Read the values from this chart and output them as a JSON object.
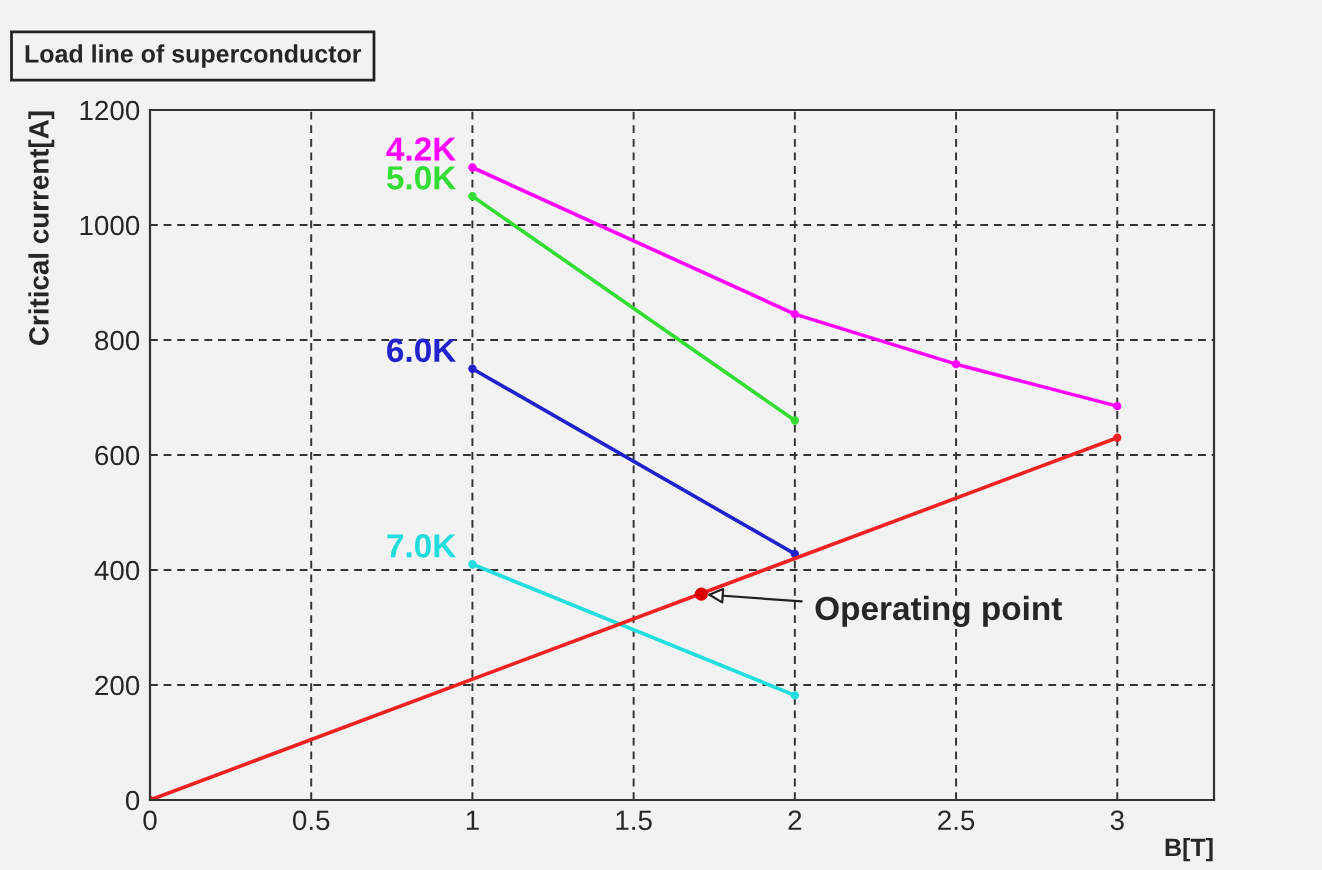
{
  "chart_data": {
    "type": "line",
    "title": "Load line of superconductor",
    "xlabel": "B[T]",
    "ylabel": "Critical current[A]",
    "xlim": [
      0,
      3.3
    ],
    "xticks": [
      0,
      0.5,
      1,
      1.5,
      2,
      2.5,
      3
    ],
    "ylim": [
      0,
      1200
    ],
    "yticks": [
      0,
      200,
      400,
      600,
      800,
      1000,
      1200
    ],
    "grid": true,
    "marker": "circle",
    "line_style": "solid",
    "series": [
      {
        "name": "4.2K",
        "color": "#ff00ff",
        "x": [
          1,
          2,
          2.5,
          3
        ],
        "values": [
          1100,
          845,
          758,
          685
        ]
      },
      {
        "name": "5.0K",
        "color": "#33dd33",
        "x": [
          1,
          2
        ],
        "values": [
          1050,
          660
        ]
      },
      {
        "name": "6.0K",
        "color": "#2222cc",
        "x": [
          1,
          2
        ],
        "values": [
          750,
          428
        ]
      },
      {
        "name": "7.0K",
        "color": "#22dddd",
        "x": [
          1,
          2
        ],
        "values": [
          410,
          182
        ]
      },
      {
        "color": "#ee2222",
        "x": [
          0,
          3
        ],
        "values": [
          0,
          630
        ]
      },
      {
        "type": "scatter",
        "color": "#dd0000",
        "x": [
          1.71
        ],
        "values": [
          358
        ]
      }
    ],
    "annotations": [
      {
        "text": "Operating point",
        "x": 1.71,
        "y": 358
      }
    ]
  }
}
